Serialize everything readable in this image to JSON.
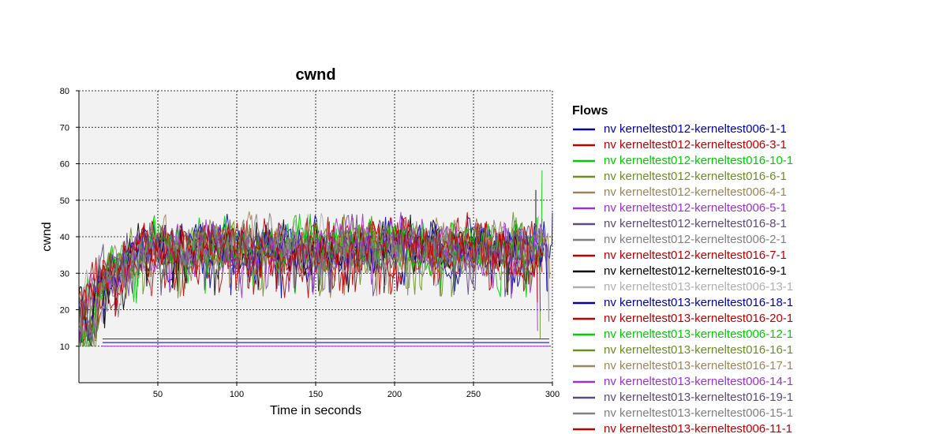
{
  "chart_data": {
    "type": "line",
    "title": "cwnd",
    "xlabel": "Time in seconds",
    "ylabel": "cwnd",
    "xlim": [
      0,
      300
    ],
    "ylim": [
      0,
      80
    ],
    "x_ticks": [
      50,
      100,
      150,
      200,
      250,
      300
    ],
    "y_ticks": [
      10,
      20,
      30,
      40,
      50,
      60,
      70,
      80
    ],
    "grid": true,
    "legend_title": "Flows",
    "legend_position": "right",
    "series": [
      {
        "name": "nv kerneltest012-kerneltest006-1-1",
        "color": "#0000aa"
      },
      {
        "name": "nv kerneltest012-kerneltest006-3-1",
        "color": "#bb0000"
      },
      {
        "name": "nv kerneltest012-kerneltest016-10-1",
        "color": "#00cc00"
      },
      {
        "name": "nv kerneltest012-kerneltest016-6-1",
        "color": "#6b8e23"
      },
      {
        "name": "nv kerneltest012-kerneltest006-4-1",
        "color": "#9c8558"
      },
      {
        "name": "nv kerneltest012-kerneltest006-5-1",
        "color": "#9933cc"
      },
      {
        "name": "nv kerneltest012-kerneltest016-8-1",
        "color": "#5c4a7a"
      },
      {
        "name": "nv kerneltest012-kerneltest006-2-1",
        "color": "#808080"
      },
      {
        "name": "nv kerneltest012-kerneltest016-7-1",
        "color": "#bb0000"
      },
      {
        "name": "nv kerneltest012-kerneltest016-9-1",
        "color": "#000000"
      },
      {
        "name": "nv kerneltest013-kerneltest006-13-1",
        "color": "#b0b0b0"
      },
      {
        "name": "nv kerneltest013-kerneltest016-18-1",
        "color": "#0000aa"
      },
      {
        "name": "nv kerneltest013-kerneltest016-20-1",
        "color": "#bb0000"
      },
      {
        "name": "nv kerneltest013-kerneltest006-12-1",
        "color": "#00cc00"
      },
      {
        "name": "nv kerneltest013-kerneltest016-16-1",
        "color": "#6b8e23"
      },
      {
        "name": "nv kerneltest013-kerneltest016-17-1",
        "color": "#9c8558"
      },
      {
        "name": "nv kerneltest013-kerneltest006-14-1",
        "color": "#9933cc"
      },
      {
        "name": "nv kerneltest013-kerneltest016-19-1",
        "color": "#5c4a7a"
      },
      {
        "name": "nv kerneltest013-kerneltest006-15-1",
        "color": "#808080"
      },
      {
        "name": "nv kerneltest013-kerneltest006-11-1",
        "color": "#bb0000"
      }
    ]
  }
}
